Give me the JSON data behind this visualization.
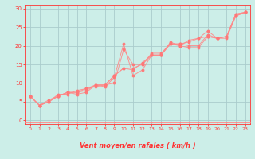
{
  "background_color": "#cceee8",
  "grid_color": "#aacccc",
  "line_color": "#ff8888",
  "marker_color": "#ff7777",
  "axis_label_color": "#ff3333",
  "tick_color": "#ff3333",
  "xlabel": "Vent moyen/en rafales ( km/h )",
  "xlim": [
    -0.5,
    23.5
  ],
  "ylim": [
    -1,
    31
  ],
  "yticks": [
    0,
    5,
    10,
    15,
    20,
    25,
    30
  ],
  "xticks": [
    0,
    1,
    2,
    3,
    4,
    5,
    6,
    7,
    8,
    9,
    10,
    11,
    12,
    13,
    14,
    15,
    16,
    17,
    18,
    19,
    20,
    21,
    22,
    23
  ],
  "lines": [
    {
      "x": [
        0,
        1,
        2,
        3,
        4,
        5,
        6,
        7,
        8,
        9,
        10,
        11,
        12,
        13,
        14,
        15,
        16,
        17,
        18,
        19,
        20,
        21,
        22,
        23
      ],
      "y": [
        6.5,
        4.0,
        5.0,
        6.5,
        7.5,
        7.5,
        8.0,
        9.5,
        9.0,
        11.5,
        20.5,
        12.0,
        13.5,
        17.5,
        17.5,
        20.5,
        20.0,
        19.5,
        19.5,
        22.5,
        22.0,
        22.0,
        28.0,
        29.0
      ]
    },
    {
      "x": [
        0,
        1,
        2,
        3,
        4,
        5,
        6,
        7,
        8,
        9,
        10,
        11,
        12,
        13,
        14,
        15,
        16,
        17,
        18,
        19,
        20,
        21,
        22,
        23
      ],
      "y": [
        6.5,
        4.0,
        5.0,
        7.0,
        7.0,
        8.0,
        8.5,
        9.0,
        9.5,
        10.0,
        19.0,
        15.0,
        15.0,
        18.0,
        18.0,
        20.5,
        20.5,
        20.0,
        20.0,
        23.0,
        22.0,
        22.5,
        28.5,
        29.0
      ]
    },
    {
      "x": [
        0,
        1,
        2,
        3,
        4,
        5,
        6,
        7,
        8,
        9,
        10,
        11,
        12,
        13,
        14,
        15,
        16,
        17,
        18,
        19,
        20,
        21,
        22,
        23
      ],
      "y": [
        6.5,
        4.0,
        5.5,
        6.5,
        7.5,
        7.0,
        7.5,
        9.5,
        9.5,
        12.0,
        14.0,
        14.0,
        15.0,
        17.5,
        17.5,
        21.0,
        20.0,
        21.5,
        22.0,
        24.0,
        22.0,
        22.5,
        28.5,
        29.0
      ]
    },
    {
      "x": [
        0,
        1,
        2,
        3,
        4,
        5,
        6,
        7,
        8,
        9,
        10,
        11,
        12,
        13,
        14,
        15,
        16,
        17,
        18,
        19,
        20,
        21,
        22,
        23
      ],
      "y": [
        6.5,
        4.0,
        5.0,
        6.5,
        7.5,
        7.5,
        8.5,
        9.5,
        9.5,
        12.0,
        14.0,
        13.5,
        15.5,
        17.5,
        17.5,
        20.5,
        20.5,
        21.0,
        22.0,
        22.5,
        22.0,
        22.5,
        28.0,
        29.0
      ]
    }
  ]
}
